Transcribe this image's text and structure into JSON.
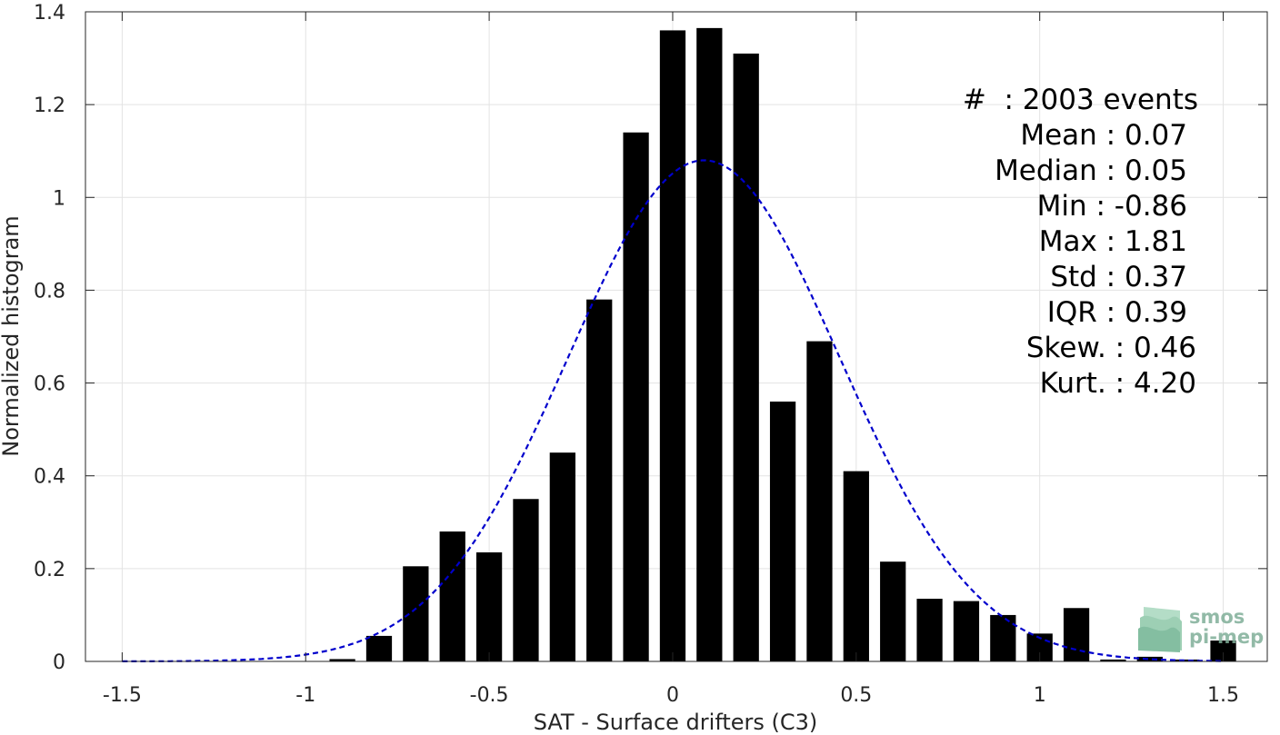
{
  "chart_data": {
    "type": "bar",
    "xlabel": "SAT - Surface drifters (C3)",
    "ylabel": "Normalized histogram",
    "xlim": [
      -1.6,
      1.62
    ],
    "ylim": [
      0,
      1.4
    ],
    "xticks": [
      -1.5,
      -1,
      -0.5,
      0,
      0.5,
      1,
      1.5
    ],
    "xtick_labels": [
      "-1.5",
      "-1",
      "-0.5",
      "0",
      "0.5",
      "1",
      "1.5"
    ],
    "yticks": [
      0,
      0.2,
      0.4,
      0.6,
      0.8,
      1,
      1.2,
      1.4
    ],
    "ytick_labels": [
      "0",
      "0.2",
      "0.4",
      "0.6",
      "0.8",
      "1",
      "1.2",
      "1.4"
    ],
    "grid": true,
    "bar_color": "#000000",
    "bar_width": 0.07,
    "bins": [
      {
        "x": -0.9,
        "y": 0.005
      },
      {
        "x": -0.8,
        "y": 0.055
      },
      {
        "x": -0.7,
        "y": 0.205
      },
      {
        "x": -0.6,
        "y": 0.28
      },
      {
        "x": -0.5,
        "y": 0.235
      },
      {
        "x": -0.4,
        "y": 0.35
      },
      {
        "x": -0.3,
        "y": 0.45
      },
      {
        "x": -0.2,
        "y": 0.78
      },
      {
        "x": -0.1,
        "y": 1.14
      },
      {
        "x": 0.0,
        "y": 1.36
      },
      {
        "x": 0.1,
        "y": 1.365
      },
      {
        "x": 0.2,
        "y": 1.31
      },
      {
        "x": 0.3,
        "y": 0.56
      },
      {
        "x": 0.4,
        "y": 0.69
      },
      {
        "x": 0.5,
        "y": 0.41
      },
      {
        "x": 0.6,
        "y": 0.215
      },
      {
        "x": 0.7,
        "y": 0.135
      },
      {
        "x": 0.8,
        "y": 0.13
      },
      {
        "x": 0.9,
        "y": 0.1
      },
      {
        "x": 1.0,
        "y": 0.06
      },
      {
        "x": 1.1,
        "y": 0.115
      },
      {
        "x": 1.2,
        "y": 0.004
      },
      {
        "x": 1.3,
        "y": 0.01
      },
      {
        "x": 1.4,
        "y": 0.004
      },
      {
        "x": 1.5,
        "y": 0.045
      }
    ],
    "fit_curve": {
      "style": "dashed",
      "color": "#0000cc",
      "mean": 0.085,
      "std": 0.37,
      "peak": 1.08,
      "x_range": [
        -1.5,
        1.5
      ]
    }
  },
  "stats": {
    "events": "#  : 2003 events",
    "mean": "Mean : 0.07",
    "median": "Median : 0.05",
    "min": "Min : -0.86",
    "max": "Max : 1.81",
    "std": "Std : 0.37",
    "iqr": "IQR : 0.39",
    "skew": "Skew. : 0.46",
    "kurt": "Kurt. : 4.20"
  },
  "logo": {
    "line1": "smos",
    "line2": "pi-mep"
  }
}
